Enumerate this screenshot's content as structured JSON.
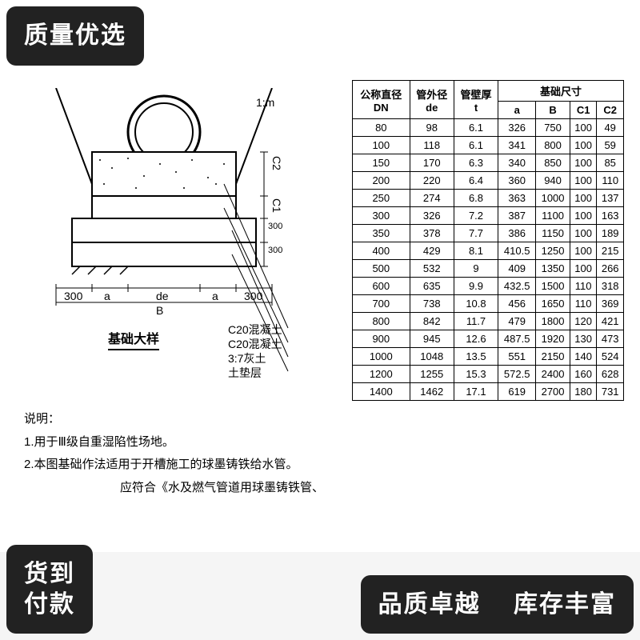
{
  "badges": {
    "top_left": "质量优选",
    "bottom_left": "货到\n付款",
    "bottom_right_1": "品质卓越",
    "bottom_right_2": "库存丰富"
  },
  "diagram": {
    "title": "基础大样",
    "notes": [
      "C20混凝土",
      "C20混凝土",
      "3:7灰土",
      "土垫层"
    ],
    "dims": {
      "side_300_left": "300",
      "side_300_right": "300",
      "v300a": "300",
      "v300b": "300",
      "a": "a",
      "de": "de",
      "B": "B",
      "C1": "C1",
      "C2": "C2",
      "slope": "1:m"
    }
  },
  "explain": {
    "heading": "说明：",
    "lines": [
      "1.用于Ⅲ级自重湿陷性场地。",
      "2.本图基础作法适用于开槽施工的球墨铸铁给水管。",
      "　　　　　　　　应符合《水及燃气管道用球墨铸铁管、"
    ]
  },
  "table": {
    "headers": {
      "c1": "公称直径",
      "c2": "管外径",
      "c3": "管壁厚",
      "group": "基础尺寸",
      "r2": [
        "DN",
        "de",
        "t",
        "a",
        "B",
        "C1",
        "C2"
      ]
    },
    "rows": [
      [
        "80",
        "98",
        "6.1",
        "326",
        "750",
        "100",
        "49"
      ],
      [
        "100",
        "118",
        "6.1",
        "341",
        "800",
        "100",
        "59"
      ],
      [
        "150",
        "170",
        "6.3",
        "340",
        "850",
        "100",
        "85"
      ],
      [
        "200",
        "220",
        "6.4",
        "360",
        "940",
        "100",
        "110"
      ],
      [
        "250",
        "274",
        "6.8",
        "363",
        "1000",
        "100",
        "137"
      ],
      [
        "300",
        "326",
        "7.2",
        "387",
        "1100",
        "100",
        "163"
      ],
      [
        "350",
        "378",
        "7.7",
        "386",
        "1150",
        "100",
        "189"
      ],
      [
        "400",
        "429",
        "8.1",
        "410.5",
        "1250",
        "100",
        "215"
      ],
      [
        "500",
        "532",
        "9",
        "409",
        "1350",
        "100",
        "266"
      ],
      [
        "600",
        "635",
        "9.9",
        "432.5",
        "1500",
        "110",
        "318"
      ],
      [
        "700",
        "738",
        "10.8",
        "456",
        "1650",
        "110",
        "369"
      ],
      [
        "800",
        "842",
        "11.7",
        "479",
        "1800",
        "120",
        "421"
      ],
      [
        "900",
        "945",
        "12.6",
        "487.5",
        "1920",
        "130",
        "473"
      ],
      [
        "1000",
        "1048",
        "13.5",
        "551",
        "2150",
        "140",
        "524"
      ],
      [
        "1200",
        "1255",
        "15.3",
        "572.5",
        "2400",
        "160",
        "628"
      ],
      [
        "1400",
        "1462",
        "17.1",
        "619",
        "2700",
        "180",
        "731"
      ]
    ]
  },
  "colors": {
    "badge_bg": "#222222",
    "badge_fg": "#ffffff",
    "page_bg": "#ffffff",
    "line": "#000000"
  }
}
